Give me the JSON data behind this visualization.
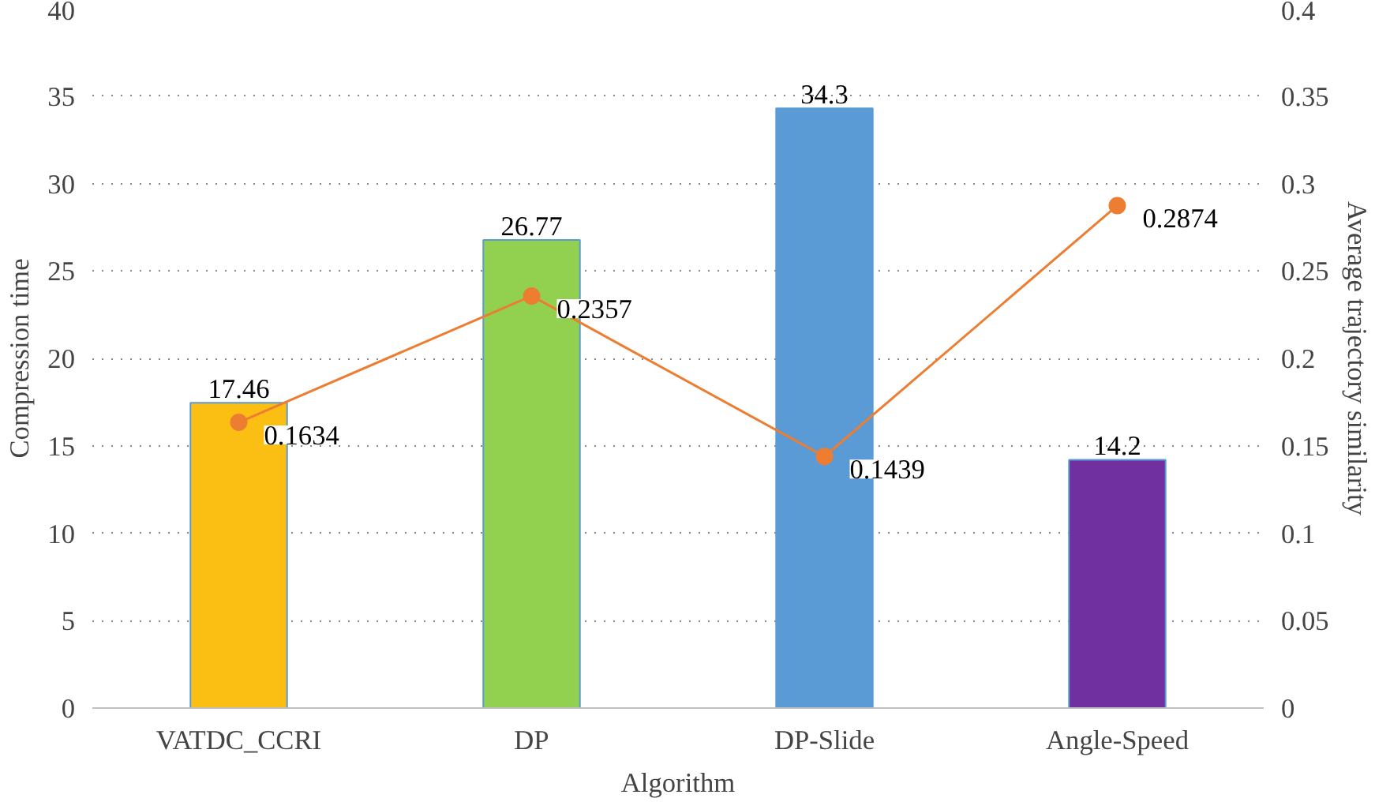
{
  "chart_data": {
    "type": "bar",
    "xlabel": "Algorithm",
    "ylabel": "Compression time",
    "y2label": "Average trajectory similarity",
    "categories": [
      "VATDC_CCRI",
      "DP",
      "DP-Slide",
      "Angle-Speed"
    ],
    "series": [
      {
        "colors": [
          "#fbbf14",
          "#92d050",
          "#5b9bd5",
          "#7030a0"
        ],
        "values": [
          17.46,
          26.77,
          34.3,
          14.2
        ]
      },
      {
        "type": "line",
        "axis": "y2",
        "color": "#ed7d31",
        "values": [
          0.1634,
          0.2357,
          0.1439,
          0.2874
        ]
      }
    ],
    "ylim": [
      0,
      40
    ],
    "yticks": [
      0,
      5,
      10,
      15,
      20,
      25,
      30,
      35,
      40
    ],
    "y2lim": [
      0,
      0.4
    ],
    "y2ticks": [
      0,
      0.05,
      0.1,
      0.15,
      0.2,
      0.25,
      0.3,
      0.35,
      0.4
    ],
    "grid": "y",
    "marker": "circle",
    "line_style": "solid",
    "data_labels": true
  }
}
